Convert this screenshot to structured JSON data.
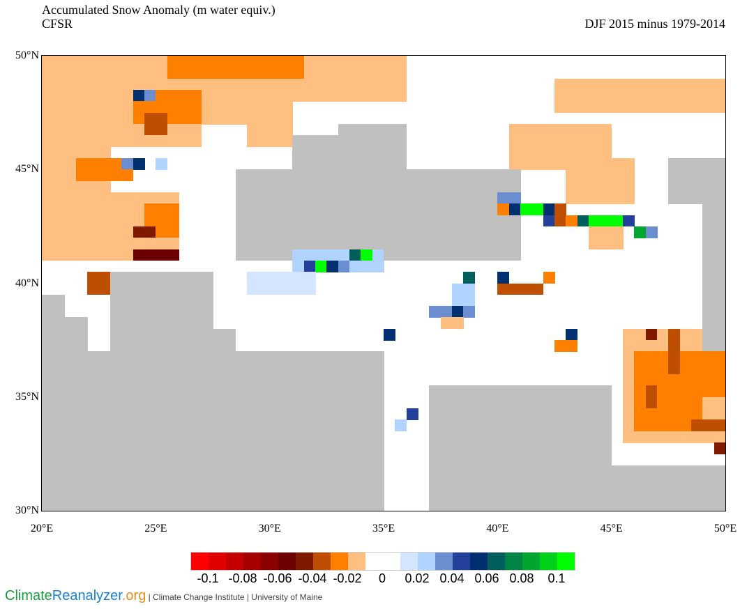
{
  "title": "Accumulated Snow Anomaly (m water equiv.)",
  "source": "CFSR",
  "period": "DJF 2015 minus 1979-2014",
  "lat_labels": [
    "50°N",
    "45°N",
    "40°N",
    "35°N",
    "30°N"
  ],
  "lat_values": [
    50,
    45,
    40,
    35,
    30
  ],
  "lon_labels": [
    "20°E",
    "25°E",
    "30°E",
    "35°E",
    "40°E",
    "45°E",
    "50°E"
  ],
  "lon_values": [
    20,
    25,
    30,
    35,
    40,
    45,
    50
  ],
  "map_extent": {
    "lon": [
      20,
      50
    ],
    "lat": [
      30,
      50
    ],
    "resolution_deg": 0.5
  },
  "colors": {
    "R1": "#ff0000",
    "R2": "#e00000",
    "R3": "#c40000",
    "R4": "#a60000",
    "R5": "#8b0000",
    "m": "#6d0000",
    "r": "#7f1a00",
    "b": "#bf4f00",
    "O": "#ff8000",
    "o": "#ffbf80",
    "w": "#ffffff",
    "l": "#d4e6ff",
    "L": "#b0d4ff",
    "B1": "#6b8ed1",
    "B": "#23419b",
    "n": "#003070",
    "t": "#005f5a",
    "G1": "#008545",
    "G2": "#00a62e",
    "G3": "#00d21a",
    "G": "#00ff00",
    "g": "#c0c0c0"
  },
  "colorbar": {
    "classes": [
      "R1",
      "R2",
      "R3",
      "R4",
      "R5",
      "m",
      "r",
      "b",
      "O",
      "o",
      "w",
      "w",
      "l",
      "L",
      "B1",
      "B",
      "n",
      "t",
      "G1",
      "G2",
      "G3",
      "G"
    ],
    "labels": [
      "-0.1",
      "-0.08",
      "-0.06",
      "-0.04",
      "-0.02",
      "0",
      "0.02",
      "0.04",
      "0.06",
      "0.08",
      "0.1"
    ]
  },
  "regions": [
    {
      "lon": [
        20,
        31
      ],
      "lat": [
        46,
        50
      ],
      "c": "o"
    },
    {
      "lon": [
        31,
        36
      ],
      "lat": [
        48,
        50
      ],
      "c": "o"
    },
    {
      "lon": [
        20,
        23
      ],
      "lat": [
        41,
        46
      ],
      "c": "o"
    },
    {
      "lon": [
        23,
        26
      ],
      "lat": [
        41,
        44
      ],
      "c": "o"
    },
    {
      "lon": [
        27,
        29
      ],
      "lat": [
        46,
        47
      ],
      "c": "w"
    },
    {
      "lon": [
        25.5,
        31.5
      ],
      "lat": [
        48.8,
        50
      ],
      "c": "O"
    },
    {
      "lon": [
        24,
        27
      ],
      "lat": [
        47,
        48.5
      ],
      "c": "O"
    },
    {
      "lon": [
        21.5,
        24
      ],
      "lat": [
        44.5,
        45.5
      ],
      "c": "O"
    },
    {
      "lon": [
        24.5,
        26
      ],
      "lat": [
        42,
        43.5
      ],
      "c": "O"
    },
    {
      "lon": [
        24,
        24.5
      ],
      "lat": [
        48,
        48.5
      ],
      "c": "n"
    },
    {
      "lon": [
        24.5,
        25
      ],
      "lat": [
        48,
        48.5
      ],
      "c": "B1"
    },
    {
      "lon": [
        24,
        24.5
      ],
      "lat": [
        45,
        45.5
      ],
      "c": "n"
    },
    {
      "lon": [
        23.5,
        24
      ],
      "lat": [
        45,
        45.5
      ],
      "c": "B1"
    },
    {
      "lon": [
        25,
        25.5
      ],
      "lat": [
        45,
        45.5
      ],
      "c": "L"
    },
    {
      "lon": [
        24.5,
        25.5
      ],
      "lat": [
        46.5,
        47.5
      ],
      "c": "b"
    },
    {
      "lon": [
        22,
        23.5
      ],
      "lat": [
        39.5,
        40.5
      ],
      "c": "b"
    },
    {
      "lon": [
        24,
        25
      ],
      "lat": [
        42,
        42.5
      ],
      "c": "r"
    },
    {
      "lon": [
        24,
        26
      ],
      "lat": [
        41,
        41.5
      ],
      "c": "m"
    },
    {
      "lon": [
        42.5,
        50
      ],
      "lat": [
        47.5,
        49
      ],
      "c": "o"
    },
    {
      "lon": [
        40.5,
        45
      ],
      "lat": [
        45,
        47
      ],
      "c": "o"
    },
    {
      "lon": [
        43,
        46
      ],
      "lat": [
        43.5,
        45.5
      ],
      "c": "o"
    },
    {
      "lon": [
        44,
        45.5
      ],
      "lat": [
        41.5,
        42.5
      ],
      "c": "o"
    },
    {
      "lon": [
        28.5,
        41
      ],
      "lat": [
        41,
        45
      ],
      "c": "g"
    },
    {
      "lon": [
        31,
        36
      ],
      "lat": [
        45,
        46.5
      ],
      "c": "g"
    },
    {
      "lon": [
        33,
        36
      ],
      "lat": [
        46.5,
        47
      ],
      "c": "g"
    },
    {
      "lon": [
        31,
        35
      ],
      "lat": [
        40.5,
        41.5
      ],
      "c": "L"
    },
    {
      "lon": [
        29,
        32
      ],
      "lat": [
        39.5,
        40.5
      ],
      "c": "l"
    },
    {
      "lon": [
        31.5,
        32
      ],
      "lat": [
        40.5,
        41
      ],
      "c": "B"
    },
    {
      "lon": [
        32,
        32.5
      ],
      "lat": [
        40.5,
        41
      ],
      "c": "G"
    },
    {
      "lon": [
        32.5,
        33
      ],
      "lat": [
        40.5,
        41
      ],
      "c": "n"
    },
    {
      "lon": [
        33,
        33.5
      ],
      "lat": [
        40.5,
        41
      ],
      "c": "B1"
    },
    {
      "lon": [
        33.5,
        34
      ],
      "lat": [
        41,
        41.5
      ],
      "c": "t"
    },
    {
      "lon": [
        34,
        34.5
      ],
      "lat": [
        41,
        41.5
      ],
      "c": "G"
    },
    {
      "lon": [
        40,
        41
      ],
      "lat": [
        43.5,
        44
      ],
      "c": "B1"
    },
    {
      "lon": [
        40,
        40.5
      ],
      "lat": [
        43,
        43.5
      ],
      "c": "O"
    },
    {
      "lon": [
        40.5,
        41
      ],
      "lat": [
        43,
        43.5
      ],
      "c": "n"
    },
    {
      "lon": [
        41,
        42
      ],
      "lat": [
        43,
        43.5
      ],
      "c": "G"
    },
    {
      "lon": [
        42,
        42.5
      ],
      "lat": [
        43,
        43.5
      ],
      "c": "n"
    },
    {
      "lon": [
        42,
        42.5
      ],
      "lat": [
        42.5,
        43
      ],
      "c": "B"
    },
    {
      "lon": [
        42.5,
        43
      ],
      "lat": [
        42.5,
        43.5
      ],
      "c": "b"
    },
    {
      "lon": [
        43,
        43.5
      ],
      "lat": [
        42.5,
        43
      ],
      "c": "O"
    },
    {
      "lon": [
        43.5,
        44
      ],
      "lat": [
        42.5,
        43
      ],
      "c": "t"
    },
    {
      "lon": [
        44,
        45.5
      ],
      "lat": [
        42.5,
        43
      ],
      "c": "G"
    },
    {
      "lon": [
        45.5,
        46
      ],
      "lat": [
        42.5,
        43
      ],
      "c": "B"
    },
    {
      "lon": [
        46,
        46.5
      ],
      "lat": [
        42,
        42.5
      ],
      "c": "G2"
    },
    {
      "lon": [
        46.5,
        47
      ],
      "lat": [
        42,
        42.5
      ],
      "c": "B1"
    },
    {
      "lon": [
        38.5,
        39
      ],
      "lat": [
        40,
        40.5
      ],
      "c": "t"
    },
    {
      "lon": [
        38,
        39
      ],
      "lat": [
        39,
        40
      ],
      "c": "L"
    },
    {
      "lon": [
        40,
        40.5
      ],
      "lat": [
        40,
        40.5
      ],
      "c": "n"
    },
    {
      "lon": [
        40,
        42
      ],
      "lat": [
        39.5,
        40
      ],
      "c": "b"
    },
    {
      "lon": [
        42,
        42.5
      ],
      "lat": [
        40,
        40.5
      ],
      "c": "O"
    },
    {
      "lon": [
        37,
        39
      ],
      "lat": [
        38.5,
        39
      ],
      "c": "B1"
    },
    {
      "lon": [
        38,
        38.5
      ],
      "lat": [
        38.5,
        39
      ],
      "c": "n"
    },
    {
      "lon": [
        37.5,
        38.5
      ],
      "lat": [
        38,
        38.5
      ],
      "c": "o"
    },
    {
      "lon": [
        35,
        35.5
      ],
      "lat": [
        37.5,
        38
      ],
      "c": "n"
    },
    {
      "lon": [
        43,
        43.5
      ],
      "lat": [
        37.5,
        38
      ],
      "c": "n"
    },
    {
      "lon": [
        42.5,
        43.5
      ],
      "lat": [
        37,
        37.5
      ],
      "c": "O"
    },
    {
      "lon": [
        45.5,
        50
      ],
      "lat": [
        33,
        38
      ],
      "c": "o"
    },
    {
      "lon": [
        46,
        50
      ],
      "lat": [
        35,
        37
      ],
      "c": "O"
    },
    {
      "lon": [
        46,
        49
      ],
      "lat": [
        33.5,
        35
      ],
      "c": "O"
    },
    {
      "lon": [
        46.5,
        47
      ],
      "lat": [
        34.5,
        35.5
      ],
      "c": "b"
    },
    {
      "lon": [
        47.5,
        48
      ],
      "lat": [
        36,
        38
      ],
      "c": "b"
    },
    {
      "lon": [
        46.5,
        47
      ],
      "lat": [
        37.5,
        38
      ],
      "c": "r"
    },
    {
      "lon": [
        48.5,
        50
      ],
      "lat": [
        33.5,
        34
      ],
      "c": "b"
    },
    {
      "lon": [
        49.5,
        50
      ],
      "lat": [
        32.5,
        33
      ],
      "c": "r"
    },
    {
      "lon": [
        20,
        35
      ],
      "lat": [
        30,
        37
      ],
      "c": "g"
    },
    {
      "lon": [
        20,
        21
      ],
      "lat": [
        37,
        39.5
      ],
      "c": "g"
    },
    {
      "lon": [
        21,
        22
      ],
      "lat": [
        37,
        38.5
      ],
      "c": "g"
    },
    {
      "lon": [
        23,
        27.5
      ],
      "lat": [
        37,
        40.5
      ],
      "c": "g"
    },
    {
      "lon": [
        26.5,
        28.5
      ],
      "lat": [
        37,
        38
      ],
      "c": "g"
    },
    {
      "lon": [
        37,
        45
      ],
      "lat": [
        30,
        35.5
      ],
      "c": "g"
    },
    {
      "lon": [
        35.5,
        36.5
      ],
      "lat": [
        32,
        35.5
      ],
      "c": "w"
    },
    {
      "lon": [
        36,
        36.5
      ],
      "lat": [
        34,
        34.5
      ],
      "c": "B"
    },
    {
      "lon": [
        35.5,
        36
      ],
      "lat": [
        33.5,
        34
      ],
      "c": "L"
    },
    {
      "lon": [
        44,
        50
      ],
      "lat": [
        30,
        32
      ],
      "c": "g"
    },
    {
      "lon": [
        49,
        50
      ],
      "lat": [
        37,
        44
      ],
      "c": "g"
    },
    {
      "lon": [
        47.5,
        50
      ],
      "lat": [
        43.5,
        45.5
      ],
      "c": "g"
    }
  ],
  "footer": {
    "brand_a": "Climate",
    "brand_b": "Reanalyzer",
    "brand_c": ".org",
    "affiliation": " | Climate Change Institute | University of Maine"
  }
}
